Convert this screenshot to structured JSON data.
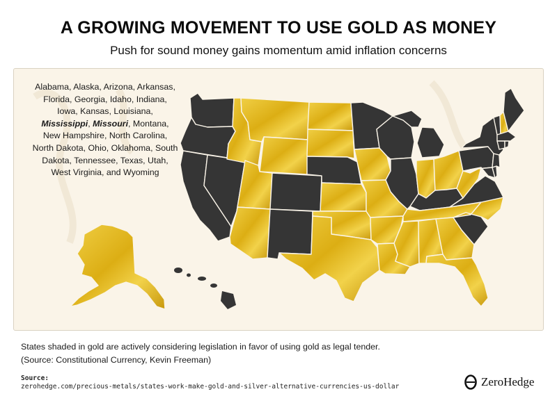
{
  "header": {
    "title": "A GROWING MOVEMENT TO USE GOLD AS MONEY",
    "subtitle": "Push for sound money gains momentum amid inflation concerns"
  },
  "legend_text": {
    "part1": "Alabama, Alaska, Arizona, Arkansas, Florida, Georgia, Idaho, Indiana, Iowa, Kansas, Louisiana, ",
    "bold1": "Mississippi",
    "part2": ", ",
    "bold2": "Missouri",
    "part3": ", Montana, New Hampshire, North Carolina, North Dakota, Ohio, Oklahoma, South Dakota, Tennessee, Texas, Utah, West Virginia, and Wyoming"
  },
  "footer": {
    "note": "States shaded in gold are actively considering legislation in favor of using gold as legal tender.",
    "citation": "(Source: Constitutional Currency, Kevin Freeman)",
    "source_label": "Source:",
    "source_url": "zerohedge.com/precious-metals/states-work-make-gold-and-silver-alternative-currencies-us-dollar",
    "brand": "ZeroHedge"
  },
  "colors": {
    "gold": "#e3b81e",
    "gold_dark": "#c99a0e",
    "dark": "#353535",
    "background": "#faf4e8"
  },
  "map_states": {
    "gold": [
      "Alabama",
      "Alaska",
      "Arizona",
      "Arkansas",
      "Florida",
      "Georgia",
      "Idaho",
      "Indiana",
      "Iowa",
      "Kansas",
      "Louisiana",
      "Mississippi",
      "Missouri",
      "Montana",
      "New Hampshire",
      "North Carolina",
      "North Dakota",
      "Ohio",
      "Oklahoma",
      "South Dakota",
      "Tennessee",
      "Texas",
      "Utah",
      "West Virginia",
      "Wyoming"
    ],
    "dark": [
      "Washington",
      "Oregon",
      "California",
      "Nevada",
      "Colorado",
      "New Mexico",
      "Nebraska",
      "Minnesota",
      "Wisconsin",
      "Illinois",
      "Michigan",
      "Kentucky",
      "Virginia",
      "Pennsylvania",
      "New York",
      "Maine",
      "Vermont",
      "Massachusetts",
      "Connecticut",
      "Rhode Island",
      "New Jersey",
      "Delaware",
      "Maryland",
      "South Carolina",
      "Hawaii"
    ]
  }
}
